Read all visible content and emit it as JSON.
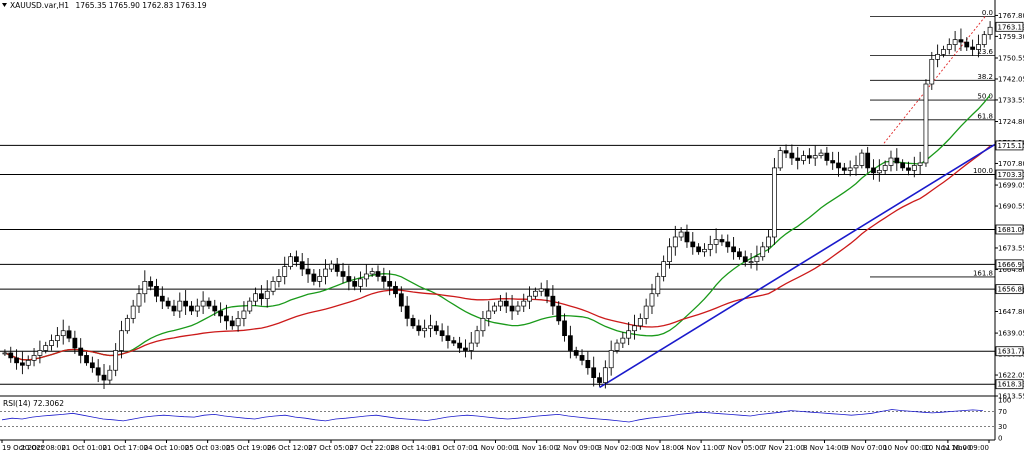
{
  "header": {
    "symbol": "XAUUSD.var,H1",
    "ohlc": "1765.35 1765.90 1762.83 1763.19"
  },
  "rsi": {
    "label": "RSI(14) 72.3062",
    "levels": [
      100,
      70,
      30,
      0
    ],
    "series": [
      48,
      52,
      50,
      55,
      58,
      60,
      62,
      65,
      60,
      55,
      50,
      48,
      45,
      50,
      55,
      58,
      60,
      58,
      56,
      55,
      60,
      62,
      58,
      55,
      52,
      50,
      55,
      58,
      60,
      55,
      52,
      48,
      45,
      50,
      52,
      55,
      58,
      60,
      56,
      52,
      50,
      48,
      46,
      50,
      55,
      58,
      60,
      58,
      55,
      52,
      50,
      52,
      55,
      58,
      60,
      62,
      58,
      55,
      52,
      50,
      48,
      45,
      42,
      48,
      52,
      55,
      58,
      62,
      65,
      68,
      66,
      64,
      62,
      60,
      58,
      62,
      65,
      68,
      72,
      70,
      68,
      66,
      64,
      62,
      60,
      62,
      65,
      70,
      75,
      72,
      70,
      68,
      66,
      68,
      70,
      72,
      74,
      72
    ]
  },
  "chart_data": {
    "type": "candlestick",
    "symbol": "XAUUSD.var",
    "timeframe": "H1",
    "ylim": [
      1613.55,
      1770.0
    ],
    "y_ticks": [
      "1767.80",
      "1759.30",
      "1750.55",
      "1742.05",
      "1733.55",
      "1724.80",
      "1716.30",
      "1707.80",
      "1699.05",
      "1690.55",
      "1681.80",
      "1673.55",
      "1664.80",
      "1656.30",
      "1647.80",
      "1639.05",
      "1630.55",
      "1622.05",
      "1613.55"
    ],
    "x_ticks": [
      "19 Oct 2022",
      "20 Oct 08:00",
      "21 Oct 01:00",
      "21 Oct 17:00",
      "24 Oct 10:00",
      "25 Oct 03:00",
      "25 Oct 19:00",
      "26 Oct 12:00",
      "27 Oct 05:00",
      "27 Oct 22:00",
      "28 Oct 14:00",
      "31 Oct 07:00",
      "1 Nov 00:00",
      "1 Nov 16:00",
      "2 Nov 09:00",
      "3 Nov 02:00",
      "3 Nov 18:00",
      "4 Nov 11:00",
      "7 Nov 05:00",
      "7 Nov 21:00",
      "8 Nov 14:00",
      "9 Nov 07:00",
      "10 Nov 00:00",
      "10 Nov 16:00",
      "11 Nov 09:00"
    ],
    "price_labels": [
      {
        "value": "1763.19",
        "color": "#000000"
      },
      {
        "value": "1715.11",
        "color": "#000000"
      },
      {
        "value": "1703.31",
        "color": "#000000"
      },
      {
        "value": "1681.04",
        "color": "#000000"
      },
      {
        "value": "1666.91",
        "color": "#000000"
      },
      {
        "value": "1656.86",
        "color": "#000000"
      },
      {
        "value": "1631.70",
        "color": "#000000"
      },
      {
        "value": "1618.33",
        "color": "#000000"
      }
    ],
    "horizontal_levels": [
      1715.11,
      1703.31,
      1681.04,
      1666.91,
      1656.86,
      1631.7,
      1618.33
    ],
    "fibonacci": [
      {
        "label": "0.0",
        "price": 1767.3
      },
      {
        "label": "23.6",
        "price": 1751.5
      },
      {
        "label": "38.2",
        "price": 1741.5
      },
      {
        "label": "50.0",
        "price": 1733.5
      },
      {
        "label": "61.8",
        "price": 1725.5
      },
      {
        "label": "100.0",
        "price": 1703.3
      },
      {
        "label": "161.8",
        "price": 1661.8
      }
    ],
    "close": [
      1631,
      1629,
      1627,
      1626,
      1628,
      1630,
      1632,
      1634,
      1636,
      1638,
      1640,
      1637,
      1633,
      1630,
      1627,
      1625,
      1622,
      1620,
      1624,
      1632,
      1640,
      1645,
      1650,
      1655,
      1660,
      1658,
      1654,
      1652,
      1650,
      1648,
      1652,
      1650,
      1648,
      1650,
      1652,
      1650,
      1648,
      1646,
      1644,
      1642,
      1645,
      1648,
      1652,
      1655,
      1653,
      1656,
      1660,
      1662,
      1666,
      1670,
      1668,
      1665,
      1663,
      1660,
      1662,
      1665,
      1667,
      1664,
      1662,
      1660,
      1658,
      1661,
      1663,
      1664,
      1662,
      1660,
      1658,
      1655,
      1650,
      1645,
      1642,
      1640,
      1641,
      1642,
      1640,
      1638,
      1636,
      1635,
      1633,
      1632,
      1635,
      1640,
      1645,
      1648,
      1650,
      1652,
      1650,
      1648,
      1650,
      1652,
      1654,
      1656,
      1657,
      1654,
      1650,
      1644,
      1638,
      1632,
      1630,
      1628,
      1625,
      1621,
      1619,
      1625,
      1632,
      1635,
      1637,
      1640,
      1642,
      1645,
      1650,
      1655,
      1662,
      1668,
      1674,
      1678,
      1680,
      1676,
      1674,
      1672,
      1673,
      1675,
      1677,
      1676,
      1674,
      1672,
      1670,
      1668,
      1668,
      1670,
      1674,
      1678,
      1706,
      1713,
      1712,
      1710,
      1709,
      1711,
      1710,
      1711,
      1712,
      1709,
      1708,
      1706,
      1705,
      1706,
      1707,
      1712,
      1706,
      1704,
      1705,
      1707,
      1710,
      1708,
      1706,
      1705,
      1707,
      1708,
      1740,
      1750,
      1752,
      1754,
      1756,
      1758,
      1757,
      1755,
      1754,
      1756,
      1760,
      1763
    ]
  }
}
